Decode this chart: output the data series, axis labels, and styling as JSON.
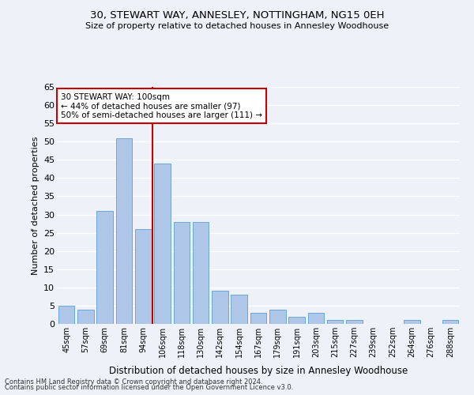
{
  "title1": "30, STEWART WAY, ANNESLEY, NOTTINGHAM, NG15 0EH",
  "title2": "Size of property relative to detached houses in Annesley Woodhouse",
  "xlabel": "Distribution of detached houses by size in Annesley Woodhouse",
  "ylabel": "Number of detached properties",
  "categories": [
    "45sqm",
    "57sqm",
    "69sqm",
    "81sqm",
    "94sqm",
    "106sqm",
    "118sqm",
    "130sqm",
    "142sqm",
    "154sqm",
    "167sqm",
    "179sqm",
    "191sqm",
    "203sqm",
    "215sqm",
    "227sqm",
    "239sqm",
    "252sqm",
    "264sqm",
    "276sqm",
    "288sqm"
  ],
  "values": [
    5,
    4,
    31,
    51,
    26,
    44,
    28,
    28,
    9,
    8,
    3,
    4,
    2,
    3,
    1,
    1,
    0,
    0,
    1,
    0,
    1
  ],
  "bar_color": "#aec6e8",
  "bar_edge_color": "#5a9fd4",
  "vline_x": 4.5,
  "vline_color": "#cc0000",
  "annotation_text": "30 STEWART WAY: 100sqm\n← 44% of detached houses are smaller (97)\n50% of semi-detached houses are larger (111) →",
  "annotation_box_color": "#ffffff",
  "annotation_box_edge": "#cc0000",
  "ylim": [
    0,
    65
  ],
  "yticks": [
    0,
    5,
    10,
    15,
    20,
    25,
    30,
    35,
    40,
    45,
    50,
    55,
    60,
    65
  ],
  "bg_color": "#eef2f8",
  "grid_color": "#ffffff",
  "footer1": "Contains HM Land Registry data © Crown copyright and database right 2024.",
  "footer2": "Contains public sector information licensed under the Open Government Licence v3.0."
}
